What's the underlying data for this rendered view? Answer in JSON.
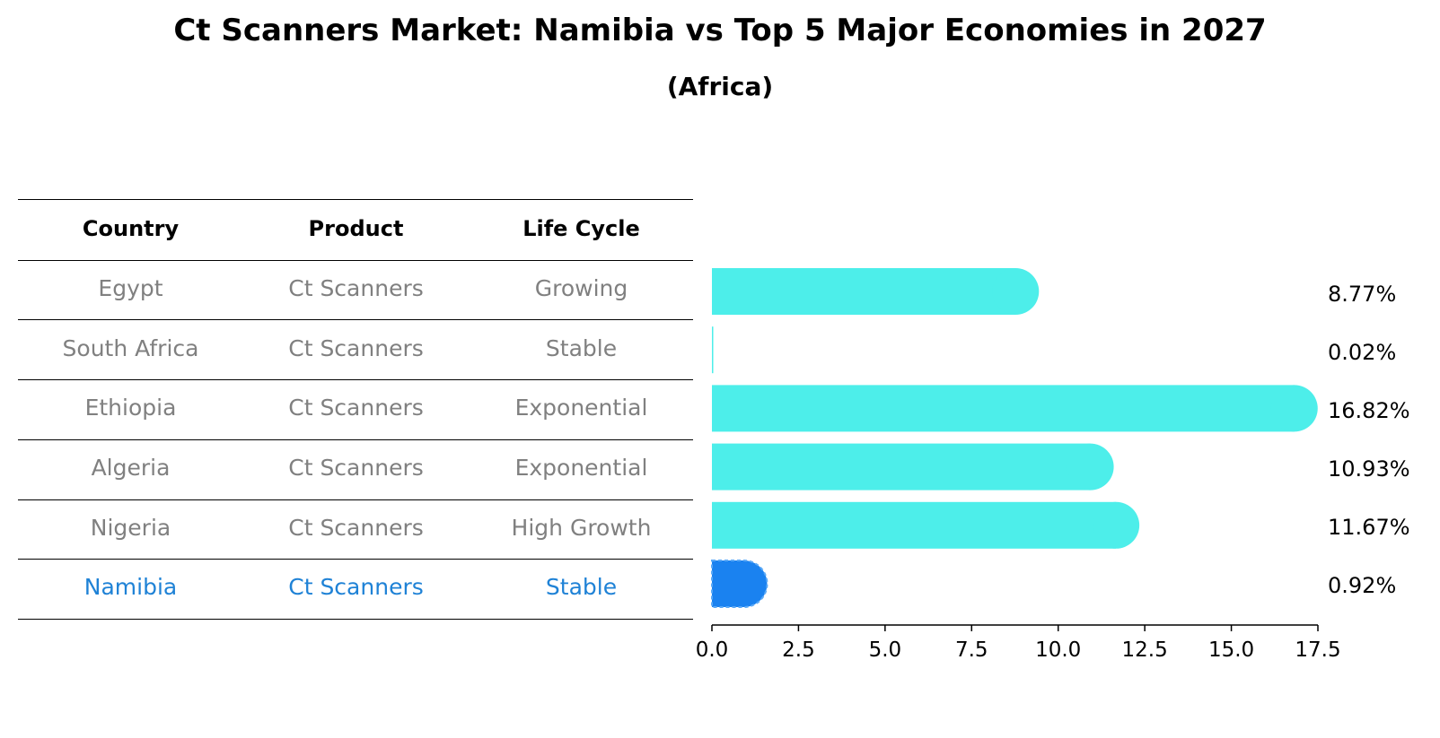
{
  "title": "Ct Scanners Market: Namibia vs Top 5 Major Economies in 2027",
  "subtitle": "(Africa)",
  "table": {
    "headers": [
      "Country",
      "Product",
      "Life Cycle"
    ],
    "rows": [
      {
        "country": "Egypt",
        "product": "Ct Scanners",
        "life_cycle": "Growing",
        "highlight": false
      },
      {
        "country": "South Africa",
        "product": "Ct Scanners",
        "life_cycle": "Stable",
        "highlight": false
      },
      {
        "country": "Ethiopia",
        "product": "Ct Scanners",
        "life_cycle": "Exponential",
        "highlight": false
      },
      {
        "country": "Algeria",
        "product": "Ct Scanners",
        "life_cycle": "Exponential",
        "highlight": false
      },
      {
        "country": "Nigeria",
        "product": "Ct Scanners",
        "life_cycle": "High Growth",
        "highlight": false
      },
      {
        "country": "Namibia",
        "product": "Ct Scanners",
        "life_cycle": "Stable",
        "highlight": true
      }
    ]
  },
  "colors": {
    "bar": "#4deeea",
    "highlight_bar": "#1a82f0",
    "highlight_text": "#1f82d6",
    "muted_text": "#808080"
  },
  "chart_data": {
    "type": "bar",
    "orientation": "horizontal",
    "categories": [
      "Egypt",
      "South Africa",
      "Ethiopia",
      "Algeria",
      "Nigeria",
      "Namibia"
    ],
    "values": [
      8.77,
      0.02,
      16.82,
      10.93,
      11.67,
      0.92
    ],
    "value_labels": [
      "8.77%",
      "0.02%",
      "16.82%",
      "10.93%",
      "11.67%",
      "0.92%"
    ],
    "highlight": "Namibia",
    "xlim": [
      0,
      17.5
    ],
    "xticks": [
      0.0,
      2.5,
      5.0,
      7.5,
      10.0,
      12.5,
      15.0,
      17.5
    ],
    "xtick_labels": [
      "0.0",
      "2.5",
      "5.0",
      "7.5",
      "10.0",
      "12.5",
      "15.0",
      "17.5"
    ],
    "xlabel": "",
    "ylabel": ""
  }
}
